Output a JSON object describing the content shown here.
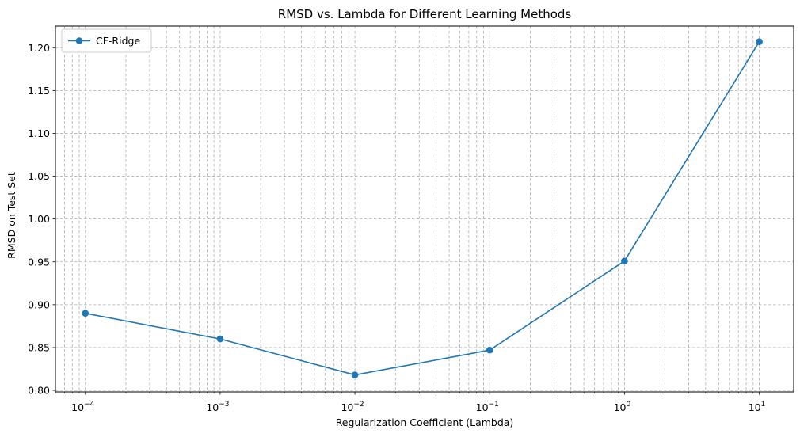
{
  "chart_data": {
    "type": "line",
    "title": "RMSD vs. Lambda for Different Learning Methods",
    "xlabel": "Regularization Coefficient (Lambda)",
    "ylabel": "RMSD on Test Set",
    "xscale": "log",
    "xlim": [
      6e-05,
      18
    ],
    "ylim": [
      0.7982,
      1.2252
    ],
    "x_ticks": [
      0.0001,
      0.001,
      0.01,
      0.1,
      1,
      10
    ],
    "x_tick_labels": [
      {
        "base": "10",
        "exp": "−4"
      },
      {
        "base": "10",
        "exp": "−3"
      },
      {
        "base": "10",
        "exp": "−2"
      },
      {
        "base": "10",
        "exp": "−1"
      },
      {
        "base": "10",
        "exp": "0"
      },
      {
        "base": "10",
        "exp": "1"
      }
    ],
    "y_ticks": [
      0.8,
      0.85,
      0.9,
      0.95,
      1.0,
      1.05,
      1.1,
      1.15,
      1.2
    ],
    "y_tick_labels": [
      "0.80",
      "0.85",
      "0.90",
      "0.95",
      "1.00",
      "1.05",
      "1.10",
      "1.15",
      "1.20"
    ],
    "grid": "major and minor, dashed",
    "legend": "upper left",
    "x": [
      0.0001,
      0.001,
      0.01,
      0.1,
      1,
      10
    ],
    "series": [
      {
        "name": "CF-Ridge",
        "color": "#1f77b4",
        "marker": "circle",
        "values": [
          0.89,
          0.86,
          0.818,
          0.847,
          0.951,
          1.207
        ]
      }
    ]
  }
}
